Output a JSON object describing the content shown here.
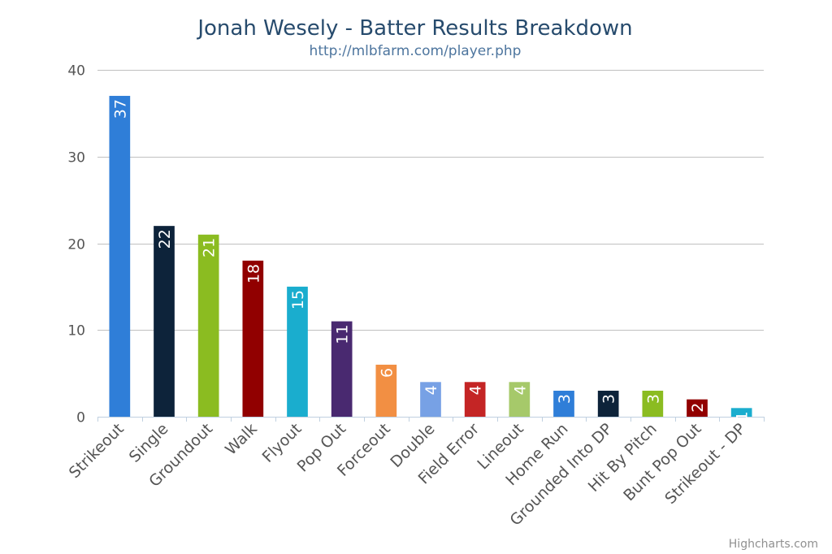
{
  "chart_data": {
    "type": "bar",
    "title": "Jonah Wesely - Batter Results Breakdown",
    "subtitle": "http://mlbfarm.com/player.php",
    "categories": [
      "Strikeout",
      "Single",
      "Groundout",
      "Walk",
      "Flyout",
      "Pop Out",
      "Forceout",
      "Double",
      "Field Error",
      "Lineout",
      "Home Run",
      "Grounded Into DP",
      "Hit By Pitch",
      "Bunt Pop Out",
      "Strikeout - DP"
    ],
    "values": [
      37,
      22,
      21,
      18,
      15,
      11,
      6,
      4,
      4,
      4,
      3,
      3,
      3,
      2,
      1
    ],
    "colors": [
      "#2f7ed8",
      "#0d233a",
      "#8bbc21",
      "#910000",
      "#1aadce",
      "#492970",
      "#f28f43",
      "#77a1e5",
      "#c42525",
      "#a6c96a",
      "#2f7ed8",
      "#0d233a",
      "#8bbc21",
      "#910000",
      "#1aadce"
    ],
    "ylim": [
      0,
      40
    ],
    "yticks": [
      0,
      10,
      20,
      30,
      40
    ],
    "grid": true,
    "data_labels": "rotated-inside-bar",
    "credits": "Highcharts.com"
  }
}
